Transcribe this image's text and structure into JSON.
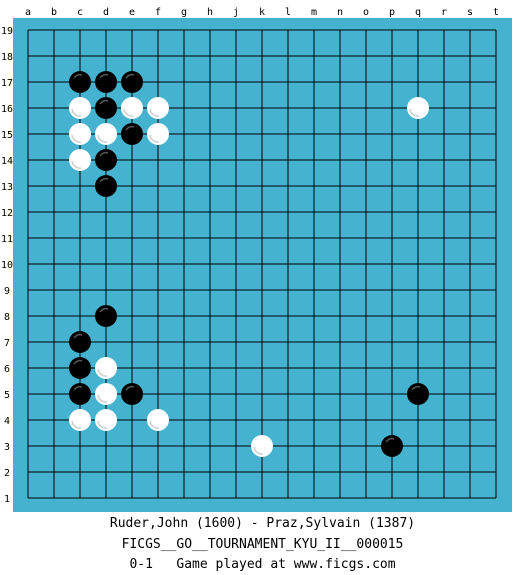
{
  "board": {
    "size": 19,
    "background_color": "#45B3D0",
    "line_color": "#000000",
    "col_labels": [
      "a",
      "b",
      "c",
      "d",
      "e",
      "f",
      "g",
      "h",
      "j",
      "k",
      "l",
      "m",
      "n",
      "o",
      "p",
      "q",
      "r",
      "s",
      "t"
    ],
    "row_labels": [
      "19",
      "18",
      "17",
      "16",
      "15",
      "14",
      "13",
      "12",
      "11",
      "10",
      "9",
      "8",
      "7",
      "6",
      "5",
      "4",
      "3",
      "2",
      "1"
    ],
    "black_stones": [
      "c17",
      "d17",
      "e17",
      "d16",
      "e15",
      "d14",
      "d13",
      "d8",
      "c7",
      "c6",
      "c5",
      "e5",
      "q5",
      "p3"
    ],
    "white_stones": [
      "c16",
      "e16",
      "f16",
      "q16",
      "c15",
      "d15",
      "f15",
      "c14",
      "d6",
      "d5",
      "c4",
      "d4",
      "f4",
      "k3"
    ]
  },
  "footer": {
    "players": "Ruder,John (1600) - Praz,Sylvain (1387)",
    "tournament": "FICGS__GO__TOURNAMENT_KYU_II__000015",
    "result": "0-1   Game played at www.ficgs.com"
  }
}
